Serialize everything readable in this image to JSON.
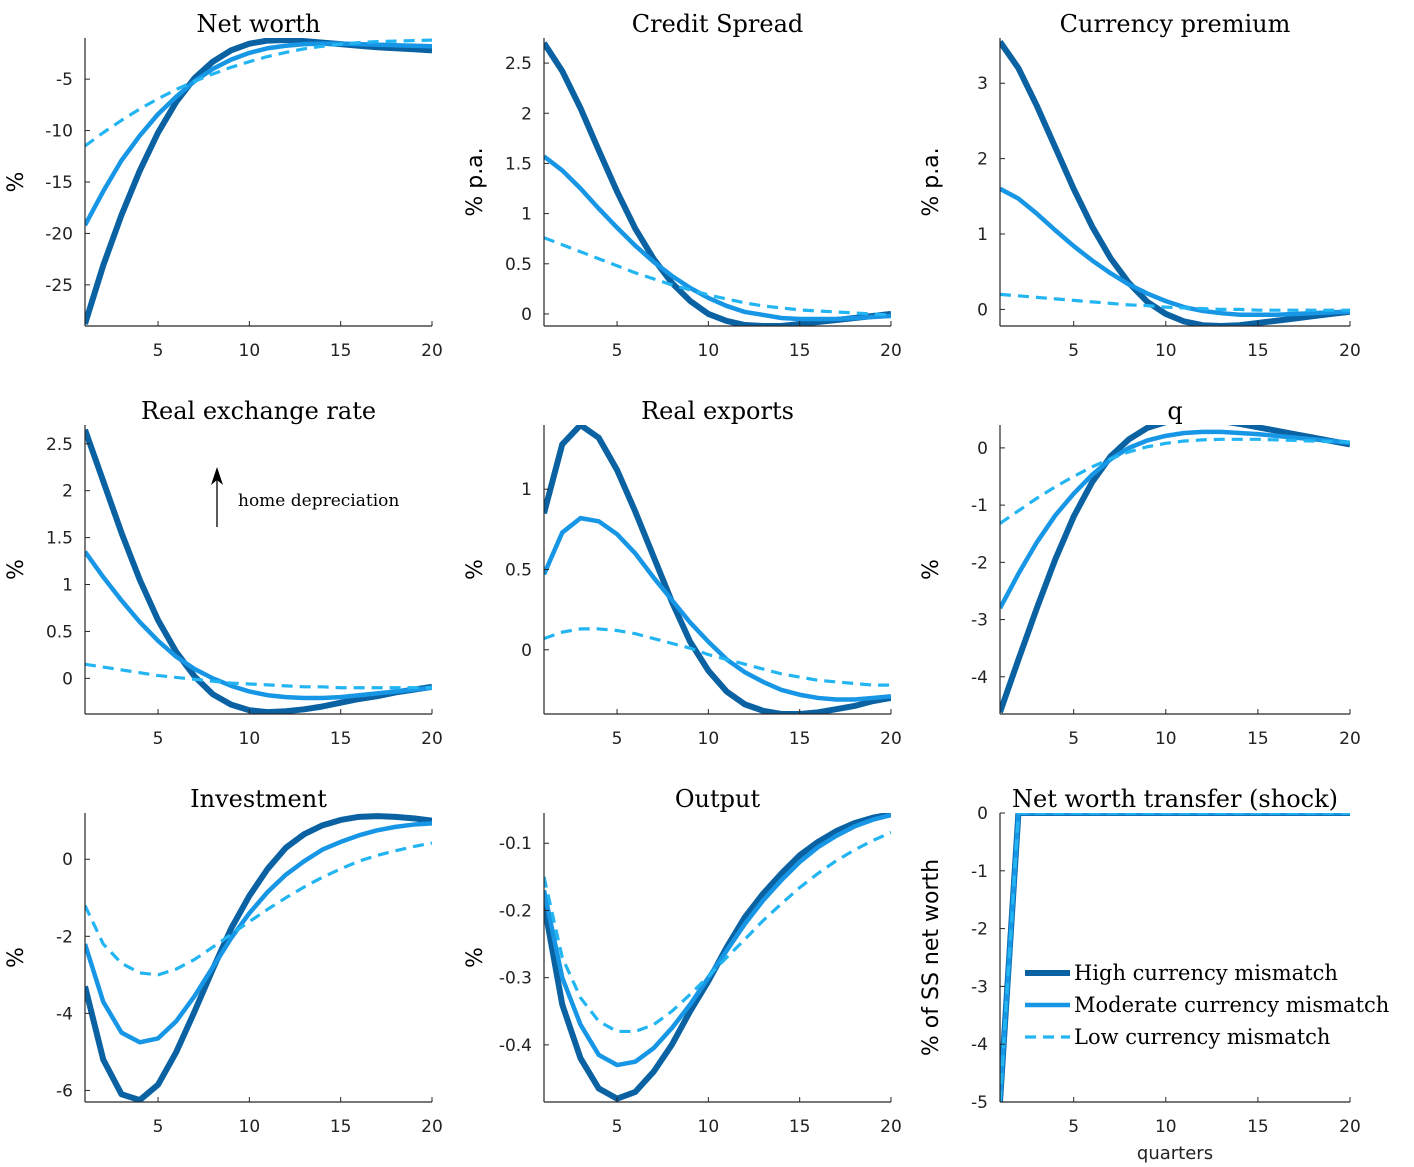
{
  "colors": {
    "high": "#0a62a3",
    "moderate": "#1796e6",
    "low": "#22b5f2",
    "axis": "#262626"
  },
  "chart_data": [
    {
      "type": "line",
      "title": "Net worth",
      "ylabel": "%",
      "xlabel": "",
      "xlim": [
        1,
        20
      ],
      "ylim": [
        -29,
        -1
      ],
      "xticks": [
        5,
        10,
        15,
        20
      ],
      "yticks": [
        -25,
        -20,
        -15,
        -10,
        -5
      ],
      "x": [
        1,
        2,
        3,
        4,
        5,
        6,
        7,
        8,
        9,
        10,
        11,
        12,
        13,
        14,
        15,
        16,
        17,
        18,
        19,
        20
      ],
      "series": [
        {
          "key": "high",
          "values": [
            -28.8,
            -23.1,
            -18.2,
            -13.9,
            -10.2,
            -7.2,
            -4.9,
            -3.3,
            -2.2,
            -1.55,
            -1.25,
            -1.2,
            -1.3,
            -1.45,
            -1.6,
            -1.75,
            -1.9,
            -2.0,
            -2.1,
            -2.2
          ]
        },
        {
          "key": "moderate",
          "values": [
            -19.2,
            -15.9,
            -12.9,
            -10.5,
            -8.4,
            -6.7,
            -5.2,
            -4.0,
            -3.1,
            -2.45,
            -2.0,
            -1.75,
            -1.6,
            -1.55,
            -1.55,
            -1.6,
            -1.65,
            -1.7,
            -1.75,
            -1.8
          ]
        },
        {
          "key": "low",
          "values": [
            -11.5,
            -10.2,
            -9.0,
            -7.9,
            -6.9,
            -6.0,
            -5.2,
            -4.5,
            -3.85,
            -3.3,
            -2.8,
            -2.4,
            -2.05,
            -1.8,
            -1.6,
            -1.45,
            -1.35,
            -1.3,
            -1.25,
            -1.2
          ],
          "dashed": true
        }
      ]
    },
    {
      "type": "line",
      "title": "Credit Spread",
      "ylabel": "% p.a.",
      "xlabel": "",
      "xlim": [
        1,
        20
      ],
      "ylim": [
        -0.12,
        2.75
      ],
      "xticks": [
        5,
        10,
        15,
        20
      ],
      "yticks": [
        0,
        0.5,
        1,
        1.5,
        2,
        2.5
      ],
      "x": [
        1,
        2,
        3,
        4,
        5,
        6,
        7,
        8,
        9,
        10,
        11,
        12,
        13,
        14,
        15,
        16,
        17,
        18,
        19,
        20
      ],
      "series": [
        {
          "key": "high",
          "values": [
            2.7,
            2.42,
            2.05,
            1.63,
            1.22,
            0.85,
            0.55,
            0.31,
            0.13,
            0.0,
            -0.07,
            -0.11,
            -0.12,
            -0.12,
            -0.1,
            -0.08,
            -0.06,
            -0.04,
            -0.02,
            0.0
          ]
        },
        {
          "key": "moderate",
          "values": [
            1.57,
            1.43,
            1.25,
            1.05,
            0.86,
            0.68,
            0.52,
            0.38,
            0.26,
            0.16,
            0.08,
            0.02,
            -0.01,
            -0.04,
            -0.05,
            -0.05,
            -0.05,
            -0.04,
            -0.03,
            -0.02
          ]
        },
        {
          "key": "low",
          "values": [
            0.76,
            0.69,
            0.62,
            0.55,
            0.48,
            0.41,
            0.35,
            0.29,
            0.24,
            0.19,
            0.15,
            0.11,
            0.08,
            0.06,
            0.04,
            0.03,
            0.02,
            0.01,
            0.0,
            -0.01
          ],
          "dashed": true
        }
      ]
    },
    {
      "type": "line",
      "title": "Currency premium",
      "ylabel": "% p.a.",
      "xlabel": "",
      "xlim": [
        1,
        20
      ],
      "ylim": [
        -0.22,
        3.6
      ],
      "xticks": [
        5,
        10,
        15,
        20
      ],
      "yticks": [
        0,
        1,
        2,
        3
      ],
      "x": [
        1,
        2,
        3,
        4,
        5,
        6,
        7,
        8,
        9,
        10,
        11,
        12,
        13,
        14,
        15,
        16,
        17,
        18,
        19,
        20
      ],
      "series": [
        {
          "key": "high",
          "values": [
            3.55,
            3.2,
            2.7,
            2.15,
            1.6,
            1.1,
            0.68,
            0.35,
            0.1,
            -0.06,
            -0.16,
            -0.21,
            -0.22,
            -0.21,
            -0.18,
            -0.15,
            -0.12,
            -0.09,
            -0.06,
            -0.03
          ]
        },
        {
          "key": "moderate",
          "values": [
            1.6,
            1.47,
            1.27,
            1.05,
            0.84,
            0.65,
            0.48,
            0.33,
            0.21,
            0.11,
            0.03,
            -0.02,
            -0.05,
            -0.07,
            -0.07,
            -0.07,
            -0.06,
            -0.05,
            -0.04,
            -0.03
          ]
        },
        {
          "key": "low",
          "values": [
            0.2,
            0.18,
            0.16,
            0.14,
            0.12,
            0.1,
            0.08,
            0.06,
            0.05,
            0.03,
            0.02,
            0.01,
            0.0,
            0.0,
            -0.01,
            -0.01,
            -0.01,
            -0.01,
            -0.01,
            -0.01
          ],
          "dashed": true
        }
      ]
    },
    {
      "type": "line",
      "title": "Real exchange rate",
      "ylabel": "%",
      "xlabel": "",
      "xlim": [
        1,
        20
      ],
      "ylim": [
        -0.38,
        2.7
      ],
      "xticks": [
        5,
        10,
        15,
        20
      ],
      "yticks": [
        0,
        0.5,
        1,
        1.5,
        2,
        2.5
      ],
      "x": [
        1,
        2,
        3,
        4,
        5,
        6,
        7,
        8,
        9,
        10,
        11,
        12,
        13,
        14,
        15,
        16,
        17,
        18,
        19,
        20
      ],
      "series": [
        {
          "key": "high",
          "values": [
            2.65,
            2.1,
            1.55,
            1.05,
            0.62,
            0.28,
            0.02,
            -0.17,
            -0.28,
            -0.34,
            -0.36,
            -0.35,
            -0.33,
            -0.3,
            -0.26,
            -0.22,
            -0.19,
            -0.15,
            -0.12,
            -0.09
          ]
        },
        {
          "key": "moderate",
          "values": [
            1.35,
            1.08,
            0.83,
            0.6,
            0.4,
            0.23,
            0.1,
            0.0,
            -0.08,
            -0.14,
            -0.18,
            -0.2,
            -0.21,
            -0.21,
            -0.2,
            -0.18,
            -0.16,
            -0.14,
            -0.12,
            -0.1
          ]
        },
        {
          "key": "low",
          "values": [
            0.15,
            0.12,
            0.09,
            0.06,
            0.03,
            0.01,
            -0.01,
            -0.03,
            -0.05,
            -0.06,
            -0.07,
            -0.08,
            -0.09,
            -0.09,
            -0.1,
            -0.1,
            -0.1,
            -0.1,
            -0.1,
            -0.1
          ],
          "dashed": true
        }
      ],
      "annotation": {
        "text": "home depreciation",
        "arrow": "up"
      }
    },
    {
      "type": "line",
      "title": "Real exports",
      "ylabel": "%",
      "xlabel": "",
      "xlim": [
        1,
        20
      ],
      "ylim": [
        -0.4,
        1.4
      ],
      "xticks": [
        5,
        10,
        15,
        20
      ],
      "yticks": [
        0,
        0.5,
        1
      ],
      "x": [
        1,
        2,
        3,
        4,
        5,
        6,
        7,
        8,
        9,
        10,
        11,
        12,
        13,
        14,
        15,
        16,
        17,
        18,
        19,
        20
      ],
      "series": [
        {
          "key": "high",
          "values": [
            0.85,
            1.28,
            1.4,
            1.32,
            1.12,
            0.86,
            0.58,
            0.3,
            0.05,
            -0.13,
            -0.26,
            -0.34,
            -0.38,
            -0.4,
            -0.4,
            -0.39,
            -0.37,
            -0.35,
            -0.32,
            -0.3
          ]
        },
        {
          "key": "moderate",
          "values": [
            0.47,
            0.73,
            0.82,
            0.8,
            0.72,
            0.6,
            0.45,
            0.31,
            0.17,
            0.05,
            -0.06,
            -0.14,
            -0.2,
            -0.25,
            -0.28,
            -0.3,
            -0.31,
            -0.31,
            -0.3,
            -0.29
          ]
        },
        {
          "key": "low",
          "values": [
            0.07,
            0.11,
            0.13,
            0.13,
            0.12,
            0.1,
            0.07,
            0.04,
            0.01,
            -0.03,
            -0.06,
            -0.09,
            -0.12,
            -0.15,
            -0.17,
            -0.19,
            -0.2,
            -0.21,
            -0.22,
            -0.22
          ],
          "dashed": true
        }
      ]
    },
    {
      "type": "line",
      "title": "q",
      "ylabel": "%",
      "xlabel": "",
      "xlim": [
        1,
        20
      ],
      "ylim": [
        -4.65,
        0.4
      ],
      "xticks": [
        5,
        10,
        15,
        20
      ],
      "yticks": [
        -4,
        -3,
        -2,
        -1,
        0
      ],
      "x": [
        1,
        2,
        3,
        4,
        5,
        6,
        7,
        8,
        9,
        10,
        11,
        12,
        13,
        14,
        15,
        16,
        17,
        18,
        19,
        20
      ],
      "series": [
        {
          "key": "high",
          "values": [
            -4.62,
            -3.7,
            -2.8,
            -1.95,
            -1.2,
            -0.6,
            -0.15,
            0.15,
            0.35,
            0.45,
            0.5,
            0.5,
            0.47,
            0.42,
            0.36,
            0.3,
            0.24,
            0.18,
            0.12,
            0.06
          ]
        },
        {
          "key": "moderate",
          "values": [
            -2.8,
            -2.2,
            -1.65,
            -1.18,
            -0.8,
            -0.47,
            -0.2,
            0.0,
            0.13,
            0.21,
            0.26,
            0.28,
            0.28,
            0.26,
            0.24,
            0.21,
            0.18,
            0.15,
            0.12,
            0.09
          ]
        },
        {
          "key": "low",
          "values": [
            -1.32,
            -1.1,
            -0.88,
            -0.68,
            -0.5,
            -0.33,
            -0.19,
            -0.07,
            0.02,
            0.08,
            0.12,
            0.14,
            0.15,
            0.15,
            0.15,
            0.14,
            0.13,
            0.12,
            0.11,
            0.1
          ],
          "dashed": true
        }
      ]
    },
    {
      "type": "line",
      "title": "Investment",
      "ylabel": "%",
      "xlabel": "",
      "xlim": [
        1,
        20
      ],
      "ylim": [
        -6.3,
        1.2
      ],
      "xticks": [
        5,
        10,
        15,
        20
      ],
      "yticks": [
        -6,
        -4,
        -2,
        0
      ],
      "x": [
        1,
        2,
        3,
        4,
        5,
        6,
        7,
        8,
        9,
        10,
        11,
        12,
        13,
        14,
        15,
        16,
        17,
        18,
        19,
        20
      ],
      "series": [
        {
          "key": "high",
          "values": [
            -3.3,
            -5.2,
            -6.1,
            -6.25,
            -5.85,
            -5.0,
            -3.95,
            -2.85,
            -1.8,
            -0.95,
            -0.25,
            0.3,
            0.65,
            0.88,
            1.02,
            1.1,
            1.12,
            1.1,
            1.06,
            1.0
          ]
        },
        {
          "key": "moderate",
          "values": [
            -2.2,
            -3.7,
            -4.5,
            -4.75,
            -4.65,
            -4.2,
            -3.55,
            -2.8,
            -2.05,
            -1.4,
            -0.85,
            -0.4,
            -0.05,
            0.25,
            0.45,
            0.62,
            0.75,
            0.84,
            0.9,
            0.93
          ]
        },
        {
          "key": "low",
          "values": [
            -1.2,
            -2.2,
            -2.7,
            -2.95,
            -3.0,
            -2.85,
            -2.6,
            -2.28,
            -1.95,
            -1.62,
            -1.3,
            -1.0,
            -0.72,
            -0.47,
            -0.25,
            -0.05,
            0.1,
            0.22,
            0.33,
            0.42
          ],
          "dashed": true
        }
      ]
    },
    {
      "type": "line",
      "title": "Output",
      "ylabel": "%",
      "xlabel": "",
      "xlim": [
        1,
        20
      ],
      "ylim": [
        -0.485,
        -0.055
      ],
      "xticks": [
        5,
        10,
        15,
        20
      ],
      "yticks": [
        -0.4,
        -0.3,
        -0.2,
        -0.1
      ],
      "x": [
        1,
        2,
        3,
        4,
        5,
        6,
        7,
        8,
        9,
        10,
        11,
        12,
        13,
        14,
        15,
        16,
        17,
        18,
        19,
        20
      ],
      "series": [
        {
          "key": "high",
          "values": [
            -0.19,
            -0.34,
            -0.42,
            -0.465,
            -0.48,
            -0.47,
            -0.44,
            -0.4,
            -0.35,
            -0.305,
            -0.255,
            -0.21,
            -0.175,
            -0.145,
            -0.118,
            -0.098,
            -0.082,
            -0.07,
            -0.062,
            -0.057
          ]
        },
        {
          "key": "moderate",
          "values": [
            -0.17,
            -0.3,
            -0.37,
            -0.415,
            -0.43,
            -0.425,
            -0.405,
            -0.375,
            -0.34,
            -0.3,
            -0.26,
            -0.22,
            -0.185,
            -0.155,
            -0.128,
            -0.106,
            -0.089,
            -0.075,
            -0.065,
            -0.058
          ]
        },
        {
          "key": "low",
          "values": [
            -0.15,
            -0.27,
            -0.33,
            -0.365,
            -0.38,
            -0.38,
            -0.37,
            -0.35,
            -0.325,
            -0.298,
            -0.27,
            -0.243,
            -0.215,
            -0.19,
            -0.166,
            -0.145,
            -0.126,
            -0.11,
            -0.096,
            -0.084
          ],
          "dashed": true
        }
      ]
    },
    {
      "type": "line",
      "title": "Net worth transfer (shock)",
      "ylabel": "% of SS net worth",
      "xlabel": "quarters",
      "xlim": [
        1,
        20
      ],
      "ylim": [
        -5,
        0
      ],
      "xticks": [
        5,
        10,
        15,
        20
      ],
      "yticks": [
        -5,
        -4,
        -3,
        -2,
        -1,
        0
      ],
      "x": [
        1,
        2,
        3,
        4,
        5,
        6,
        7,
        8,
        9,
        10,
        11,
        12,
        13,
        14,
        15,
        16,
        17,
        18,
        19,
        20
      ],
      "series": [
        {
          "key": "high",
          "values": [
            -5,
            0,
            0,
            0,
            0,
            0,
            0,
            0,
            0,
            0,
            0,
            0,
            0,
            0,
            0,
            0,
            0,
            0,
            0,
            0
          ]
        },
        {
          "key": "moderate",
          "values": [
            -5,
            0,
            0,
            0,
            0,
            0,
            0,
            0,
            0,
            0,
            0,
            0,
            0,
            0,
            0,
            0,
            0,
            0,
            0,
            0
          ]
        },
        {
          "key": "low",
          "values": [
            -5,
            0,
            0,
            0,
            0,
            0,
            0,
            0,
            0,
            0,
            0,
            0,
            0,
            0,
            0,
            0,
            0,
            0,
            0,
            0
          ],
          "dashed": true
        }
      ],
      "legend": [
        {
          "key": "high",
          "label": "High currency mismatch"
        },
        {
          "key": "moderate",
          "label": "Moderate currency mismatch"
        },
        {
          "key": "low",
          "label": "Low currency mismatch",
          "dashed": true
        }
      ]
    }
  ]
}
